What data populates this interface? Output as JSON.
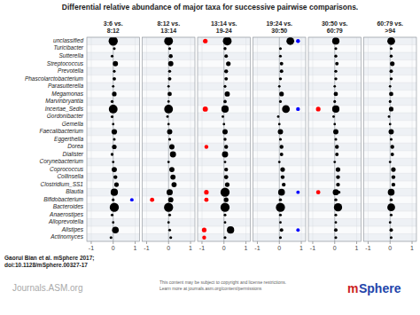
{
  "chart_data": {
    "type": "scatter",
    "title": "Differential relative abundance of major taxa for successive pairwise comparisons.",
    "categories": [
      "unclassified",
      "Turicibacter",
      "Sutterella",
      "Streptococcus",
      "Prevotella",
      "Phascolarctobacterium",
      "Parasutterella",
      "Megamonas",
      "Marvinbryantia",
      "Incertae_Sedis",
      "Gordonibacter",
      "Gemella",
      "Faecalibacterium",
      "Eggerthella",
      "Dorea",
      "Dialister",
      "Corynebacterium",
      "Coprococcus",
      "Collinsella",
      "Clostridium_SS1",
      "Blautia",
      "Bifidobacterium",
      "Bacteroides",
      "Anaerostipes",
      "Alloprevotella",
      "Alistipes",
      "Actinomyces"
    ],
    "xlim": [
      -1.2,
      1.2
    ],
    "xticks": [
      -1,
      0,
      1
    ],
    "grid": true,
    "series": [
      {
        "name": "3:6 vs.\n8:12",
        "y": [
          "unclassified",
          "Turicibacter",
          "Sutterella",
          "Streptococcus",
          "Prevotella",
          "Phascolarctobacterium",
          "Parasutterella",
          "Megamonas",
          "Marvinbryantia",
          "Incertae_Sedis",
          "Gordonibacter",
          "Gemella",
          "Faecalibacterium",
          "Eggerthella",
          "Dorea",
          "Dialister",
          "Corynebacterium",
          "Coprococcus",
          "Collinsella",
          "Clostridium_SS1",
          "Blautia",
          "Bifidobacterium",
          "Bifidobacterium",
          "Bacteroides",
          "Anaerostipes",
          "Alloprevotella",
          "Alistipes",
          "Actinomyces"
        ],
        "x": [
          0.0,
          0.05,
          -0.05,
          0.1,
          0.05,
          0.05,
          0.0,
          0.05,
          -0.05,
          0.0,
          -0.05,
          0.0,
          0.05,
          0.05,
          0.05,
          -0.05,
          0.0,
          0.05,
          0.1,
          0.15,
          0.05,
          0.0,
          0.85,
          0.05,
          -0.05,
          0.0,
          0.1,
          -0.1
        ],
        "size": [
          55,
          5,
          5,
          18,
          5,
          8,
          4,
          14,
          6,
          50,
          5,
          4,
          20,
          5,
          14,
          6,
          4,
          18,
          10,
          14,
          35,
          5,
          8,
          55,
          5,
          4,
          30,
          5
        ],
        "colors": [
          "black",
          "black",
          "black",
          "black",
          "black",
          "black",
          "black",
          "black",
          "black",
          "black",
          "black",
          "black",
          "black",
          "black",
          "black",
          "black",
          "black",
          "black",
          "black",
          "black",
          "black",
          "black",
          "blue",
          "black",
          "black",
          "black",
          "black",
          "black"
        ]
      },
      {
        "name": "8:12 vs.\n13:14",
        "y": [
          "unclassified",
          "Turicibacter",
          "Sutterella",
          "Streptococcus",
          "Prevotella",
          "Phascolarctobacterium",
          "Parasutterella",
          "Megamonas",
          "Marvinbryantia",
          "Incertae_Sedis",
          "Gordonibacter",
          "Gemella",
          "Faecalibacterium",
          "Eggerthella",
          "Dorea",
          "Dialister",
          "Corynebacterium",
          "Coprococcus",
          "Collinsella",
          "Clostridium_SS1",
          "Blautia",
          "Bifidobacterium",
          "Bifidobacterium",
          "Bacteroides",
          "Anaerostipes",
          "Alloprevotella",
          "Alistipes",
          "Actinomyces"
        ],
        "x": [
          0.0,
          0.05,
          0.1,
          0.1,
          0.05,
          0.05,
          0.0,
          0.05,
          0.0,
          0.0,
          -0.05,
          0.0,
          0.05,
          0.05,
          0.15,
          0.2,
          0.0,
          0.15,
          0.2,
          0.25,
          0.05,
          -0.75,
          0.1,
          0.0,
          0.05,
          0.0,
          0.05,
          0.1
        ],
        "size": [
          50,
          5,
          10,
          18,
          6,
          8,
          4,
          12,
          4,
          50,
          4,
          4,
          18,
          5,
          18,
          25,
          4,
          18,
          18,
          18,
          25,
          12,
          18,
          55,
          5,
          4,
          5,
          5
        ],
        "colors": [
          "black",
          "black",
          "black",
          "black",
          "black",
          "black",
          "black",
          "black",
          "black",
          "black",
          "black",
          "black",
          "black",
          "black",
          "black",
          "black",
          "black",
          "black",
          "black",
          "black",
          "black",
          "red",
          "black",
          "black",
          "black",
          "black",
          "black",
          "black"
        ]
      },
      {
        "name": "13:14 vs.\n19-24",
        "y": [
          "unclassified",
          "unclassified",
          "Turicibacter",
          "Sutterella",
          "Streptococcus",
          "Prevotella",
          "Phascolarctobacterium",
          "Parasutterella",
          "Megamonas",
          "Marvinbryantia",
          "Incertae_Sedis",
          "Incertae_Sedis",
          "Gordonibacter",
          "Gemella",
          "Faecalibacterium",
          "Eggerthella",
          "Dorea",
          "Dorea",
          "Dialister",
          "Corynebacterium",
          "Coprococcus",
          "Collinsella",
          "Clostridium_SS1",
          "Blautia",
          "Blautia",
          "Bifidobacterium",
          "Bifidobacterium",
          "Bacteroides",
          "Anaerostipes",
          "Alloprevotella",
          "Alistipes",
          "Alistipes",
          "Actinomyces",
          "Actinomyces"
        ],
        "x": [
          -0.85,
          0.15,
          0.05,
          0.1,
          0.2,
          0.1,
          0.1,
          0.05,
          0.15,
          0.05,
          -0.85,
          0.05,
          -0.05,
          0.0,
          0.05,
          0.05,
          -0.8,
          0.1,
          0.05,
          0.05,
          0.1,
          0.1,
          0.15,
          -0.8,
          0.05,
          -0.8,
          0.1,
          0.05,
          0.05,
          0.05,
          -0.9,
          0.3,
          -0.9,
          0.05
        ],
        "size": [
          14,
          50,
          6,
          8,
          14,
          10,
          8,
          5,
          18,
          7,
          18,
          35,
          4,
          4,
          18,
          6,
          10,
          10,
          25,
          4,
          10,
          12,
          14,
          14,
          55,
          12,
          14,
          55,
          5,
          4,
          14,
          35,
          10,
          5
        ],
        "colors": [
          "red",
          "black",
          "black",
          "black",
          "black",
          "black",
          "black",
          "black",
          "black",
          "black",
          "red",
          "black",
          "black",
          "black",
          "black",
          "black",
          "red",
          "black",
          "black",
          "black",
          "black",
          "black",
          "black",
          "red",
          "black",
          "red",
          "black",
          "black",
          "black",
          "black",
          "red",
          "black",
          "red",
          "black"
        ]
      },
      {
        "name": "19:24 vs.\n30:50",
        "y": [
          "unclassified",
          "unclassified",
          "Turicibacter",
          "Sutterella",
          "Streptococcus",
          "Prevotella",
          "Phascolarctobacterium",
          "Parasutterella",
          "Megamonas",
          "Marvinbryantia",
          "Incertae_Sedis",
          "Incertae_Sedis",
          "Gordonibacter",
          "Gemella",
          "Faecalibacterium",
          "Eggerthella",
          "Dorea",
          "Dialister",
          "Corynebacterium",
          "Coprococcus",
          "Collinsella",
          "Clostridium_SS1",
          "Blautia",
          "Blautia",
          "Bifidobacterium",
          "Bacteroides",
          "Anaerostipes",
          "Alloprevotella",
          "Alistipes",
          "Alistipes",
          "Actinomyces"
        ],
        "x": [
          0.5,
          0.85,
          0.05,
          0.05,
          0.1,
          0.1,
          0.05,
          0.0,
          0.1,
          0.05,
          0.3,
          0.85,
          -0.05,
          0.0,
          0.05,
          0.05,
          0.1,
          0.1,
          0.0,
          0.15,
          0.15,
          0.2,
          0.1,
          0.85,
          0.05,
          0.05,
          0.05,
          0.05,
          0.1,
          0.85,
          0.05
        ],
        "size": [
          40,
          10,
          5,
          5,
          8,
          8,
          6,
          4,
          14,
          5,
          40,
          10,
          4,
          4,
          18,
          5,
          10,
          8,
          4,
          14,
          10,
          10,
          30,
          8,
          6,
          55,
          5,
          4,
          8,
          8,
          5
        ],
        "colors": [
          "black",
          "blue",
          "black",
          "black",
          "black",
          "black",
          "black",
          "black",
          "black",
          "black",
          "black",
          "blue",
          "black",
          "black",
          "black",
          "black",
          "black",
          "black",
          "black",
          "black",
          "black",
          "black",
          "black",
          "blue",
          "black",
          "black",
          "black",
          "black",
          "black",
          "blue",
          "black"
        ]
      },
      {
        "name": "30:50 vs.\n60:79",
        "y": [
          "unclassified",
          "Turicibacter",
          "Sutterella",
          "Streptococcus",
          "Prevotella",
          "Phascolarctobacterium",
          "Parasutterella",
          "Megamonas",
          "Marvinbryantia",
          "Incertae_Sedis",
          "Incertae_Sedis",
          "Gordonibacter",
          "Gemella",
          "Faecalibacterium",
          "Eggerthella",
          "Dorea",
          "Dialister",
          "Corynebacterium",
          "Coprococcus",
          "Collinsella",
          "Clostridium_SS1",
          "Blautia",
          "Blautia",
          "Blautia",
          "Bifidobacterium",
          "Bacteroides",
          "Anaerostipes",
          "Alloprevotella",
          "Alistipes",
          "Actinomyces"
        ],
        "x": [
          0.05,
          0.05,
          0.05,
          0.1,
          0.05,
          0.05,
          0.0,
          0.05,
          0.0,
          -0.75,
          0.05,
          -0.05,
          0.0,
          0.05,
          0.05,
          0.1,
          0.1,
          0.0,
          0.15,
          0.15,
          0.15,
          -0.75,
          0.05,
          0.2,
          0.05,
          0.15,
          0.05,
          0.05,
          0.05,
          0.05
        ],
        "size": [
          35,
          5,
          6,
          8,
          6,
          6,
          4,
          12,
          5,
          14,
          35,
          4,
          4,
          18,
          5,
          10,
          8,
          4,
          14,
          10,
          10,
          12,
          25,
          5,
          6,
          45,
          5,
          4,
          8,
          5
        ],
        "colors": [
          "black",
          "black",
          "black",
          "black",
          "black",
          "black",
          "black",
          "black",
          "black",
          "red",
          "black",
          "black",
          "black",
          "black",
          "black",
          "black",
          "black",
          "black",
          "black",
          "black",
          "black",
          "red",
          "black",
          "black",
          "black",
          "black",
          "black",
          "black",
          "black",
          "black"
        ]
      },
      {
        "name": "60:79 vs.\n>94",
        "y": [
          "unclassified",
          "Turicibacter",
          "Sutterella",
          "Streptococcus",
          "Prevotella",
          "Phascolarctobacterium",
          "Parasutterella",
          "Megamonas",
          "Marvinbryantia",
          "Incertae_Sedis",
          "Gordonibacter",
          "Gemella",
          "Faecalibacterium",
          "Eggerthella",
          "Dorea",
          "Dialister",
          "Corynebacterium",
          "Coprococcus",
          "Collinsella",
          "Clostridium_SS1",
          "Blautia",
          "Bifidobacterium",
          "Bacteroides",
          "Anaerostipes",
          "Alloprevotella",
          "Alistipes",
          "Actinomyces"
        ],
        "x": [
          0.05,
          0.05,
          0.05,
          0.1,
          0.05,
          0.05,
          0.0,
          0.05,
          0.0,
          0.05,
          -0.05,
          0.0,
          0.05,
          0.05,
          0.1,
          0.1,
          0.0,
          0.15,
          0.15,
          0.15,
          0.05,
          0.05,
          0.05,
          0.05,
          0.0,
          0.05,
          0.05
        ],
        "size": [
          40,
          5,
          6,
          14,
          8,
          6,
          4,
          12,
          5,
          14,
          4,
          4,
          18,
          5,
          10,
          8,
          4,
          14,
          10,
          10,
          30,
          6,
          40,
          5,
          4,
          8,
          5
        ],
        "colors": [
          "black",
          "black",
          "black",
          "black",
          "black",
          "black",
          "black",
          "black",
          "black",
          "black",
          "black",
          "black",
          "black",
          "black",
          "black",
          "black",
          "black",
          "black",
          "black",
          "black",
          "black",
          "black",
          "black",
          "black",
          "black",
          "black",
          "black"
        ]
      }
    ],
    "annotations": [
      "Gaorui Bian et al. mSphere 2017;\ndoi:10.1128/mSphere.00327-17",
      "Journals.ASM.org",
      "This content may be subject to copyright and license restrictions.\nLearn more at journals.asm.org/content/permissions",
      "m",
      "Sphere"
    ]
  }
}
